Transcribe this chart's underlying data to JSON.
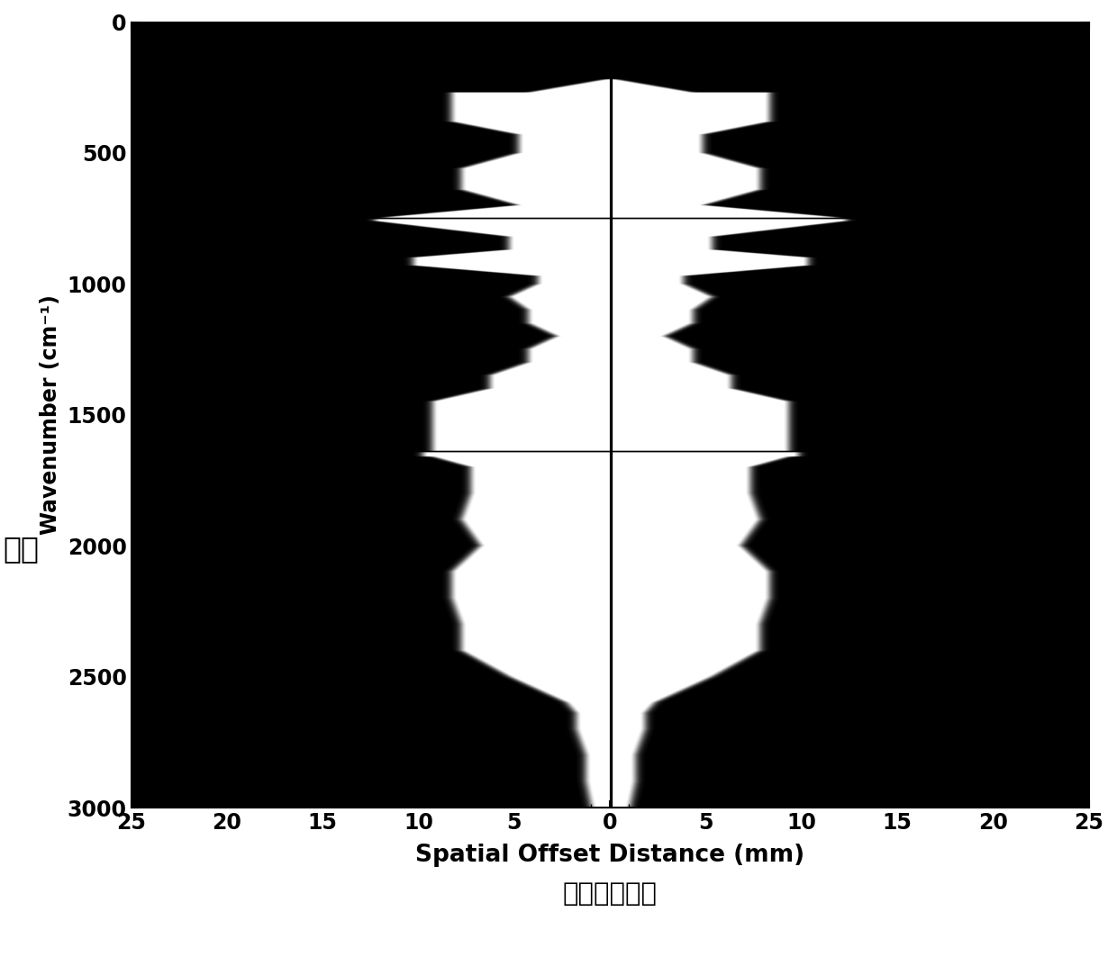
{
  "xlabel": "Spatial Offset Distance (mm)",
  "xlabel_chinese": "光谱偏移距离",
  "ylabel_english": "Wavenumber (cm⁻¹)",
  "ylabel_chinese": "波数",
  "xlim": [
    -25,
    25
  ],
  "ylim": [
    0,
    3000
  ],
  "xticks": [
    -25,
    -20,
    -15,
    -10,
    -5,
    0,
    5,
    10,
    15,
    20,
    25
  ],
  "xtick_labels": [
    "25",
    "20",
    "15",
    "10",
    "5",
    "0",
    "5",
    "10",
    "15",
    "20",
    "25"
  ],
  "yticks": [
    0,
    500,
    1000,
    1500,
    2000,
    2500,
    3000
  ],
  "crosshair_wn1": 750,
  "crosshair_wn2": 1640,
  "figsize": [
    12.4,
    10.83
  ],
  "dpi": 100
}
